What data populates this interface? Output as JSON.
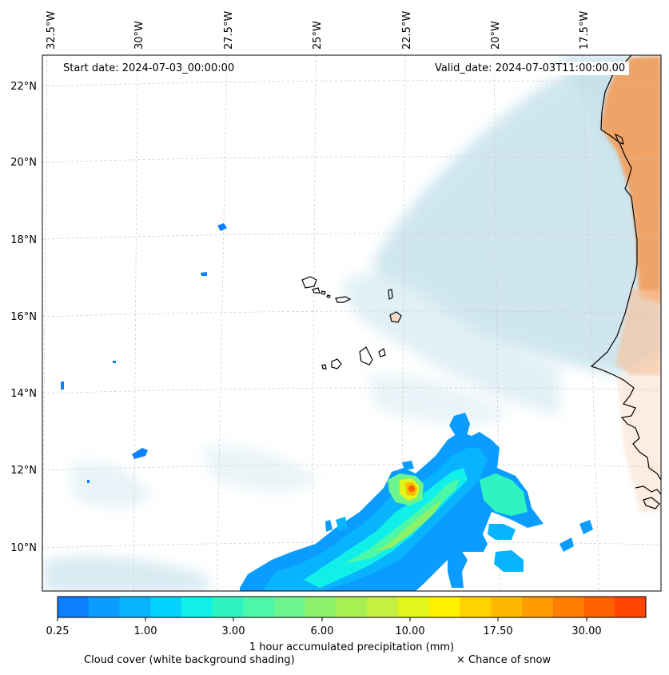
{
  "map": {
    "start_label": "Start date: 2024-07-03_00:00:00",
    "valid_label": "Valid_date: 2024-07-03T11:00:00.00",
    "lon_labels": [
      "32.5°W",
      "30°W",
      "27.5°W",
      "25°W",
      "22.5°W",
      "20°W",
      "17.5°W"
    ],
    "lat_labels": [
      "22°N",
      "20°N",
      "18°N",
      "16°N",
      "14°N",
      "12°N",
      "10°N"
    ]
  },
  "colorbar": {
    "title": "1 hour accumulated precipitation (mm)",
    "tick_labels": [
      "0.25",
      "1.00",
      "3.00",
      "6.00",
      "10.00",
      "17.50",
      "30.00"
    ],
    "colors": [
      "#0a80ff",
      "#0a9cff",
      "#08b4ff",
      "#03d2ff",
      "#10f0e8",
      "#2ef5c0",
      "#4df7a8",
      "#6cf58c",
      "#8cf26a",
      "#a8f052",
      "#c6f040",
      "#e2f51c",
      "#fff000",
      "#ffd200",
      "#ffb800",
      "#ff9c00",
      "#ff7d00",
      "#ff6000",
      "#ff4500"
    ]
  },
  "legend": {
    "cloud_label": "Cloud cover (white background shading)",
    "snow_label": "× Chance of snow"
  },
  "colors": {
    "cloud": "#a9d3e3",
    "land_temp": "#f2a060",
    "coast": "#000000"
  }
}
